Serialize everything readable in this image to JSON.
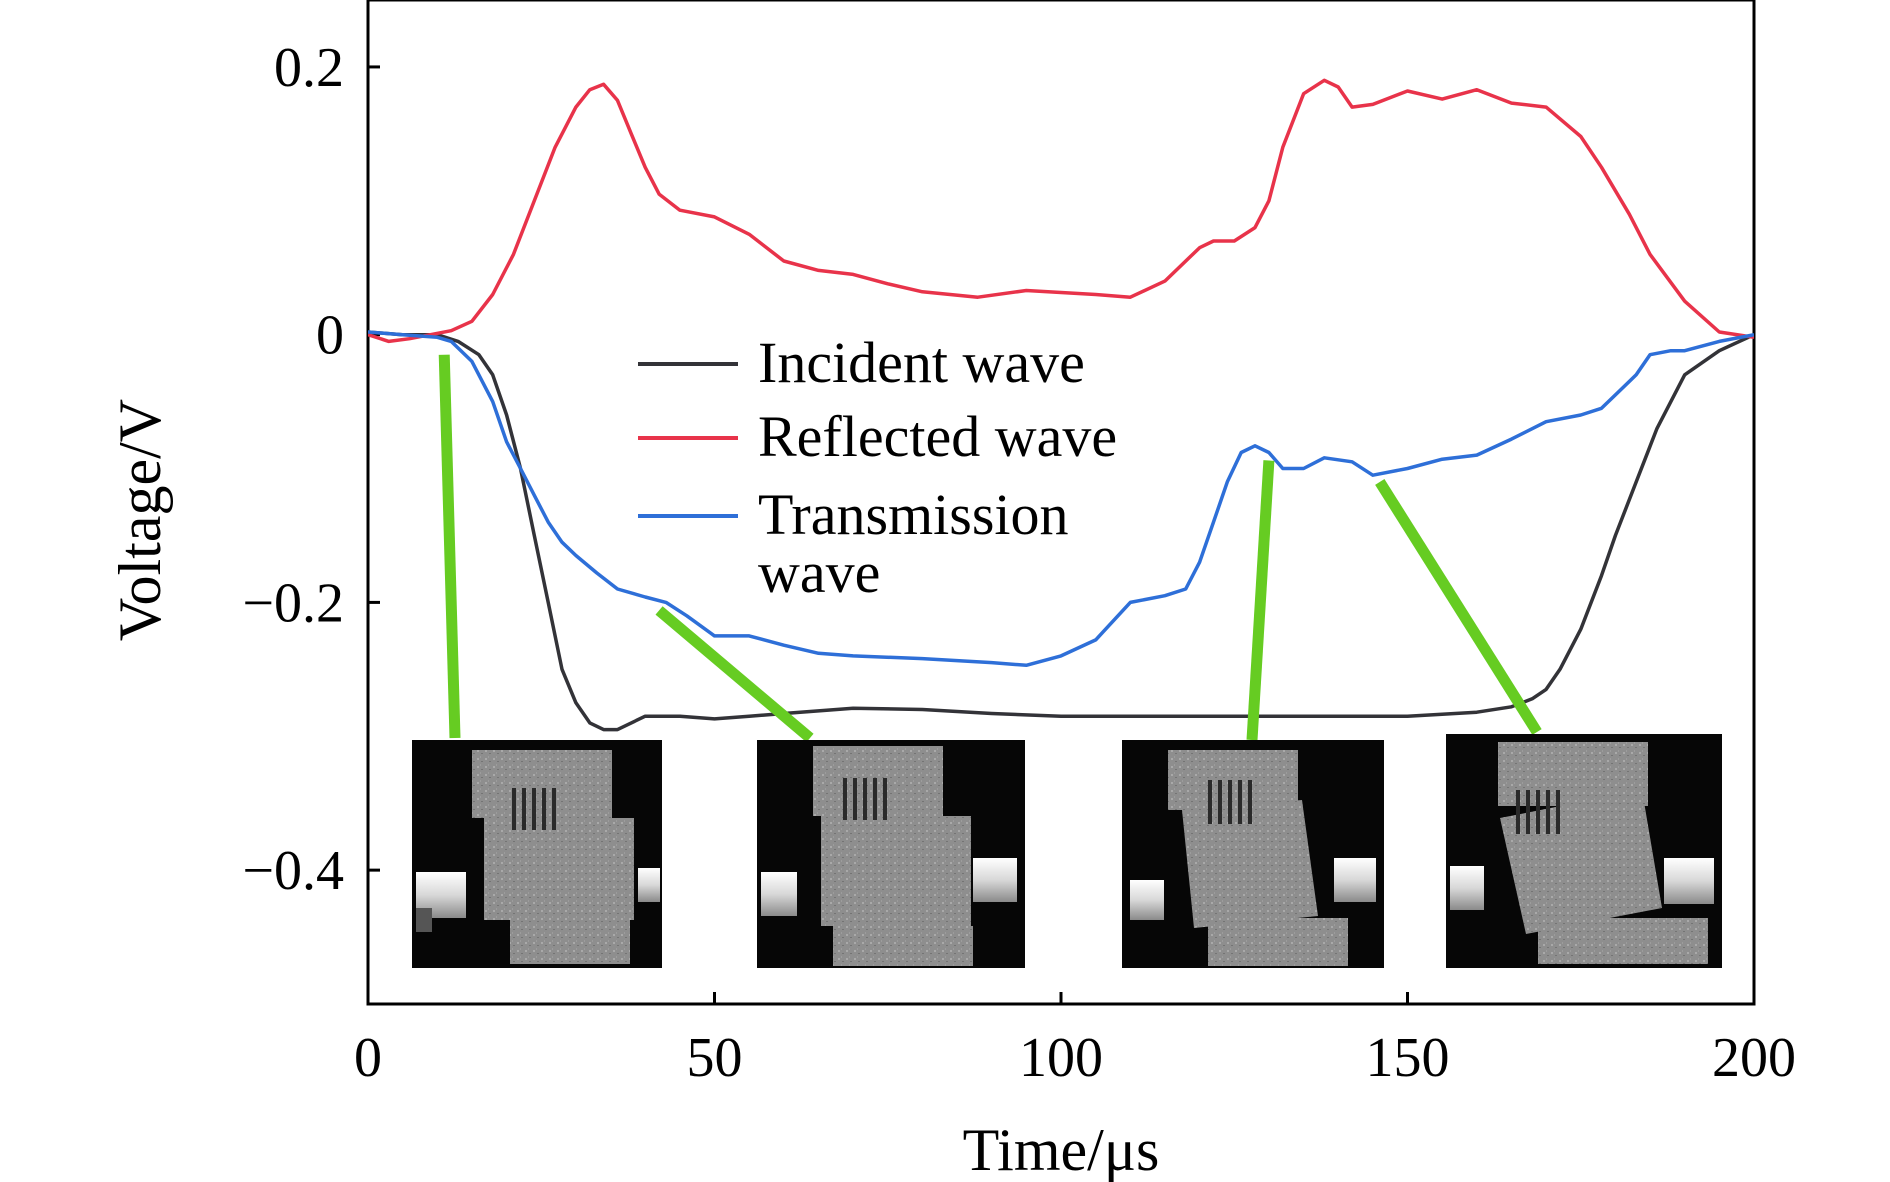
{
  "chart_data": {
    "type": "line",
    "xlabel": "Time/μs",
    "ylabel": "Voltage/V",
    "xlim": [
      0,
      200
    ],
    "ylim": [
      -0.5,
      0.25
    ],
    "xticks": [
      0,
      50,
      100,
      150,
      200
    ],
    "xtick_labels": [
      "0",
      "50",
      "100",
      "150",
      "200"
    ],
    "yticks": [
      0.2,
      0,
      -0.2,
      -0.4
    ],
    "ytick_labels": [
      "0.2",
      "0",
      "−0.2",
      "−0.4"
    ],
    "grid": false,
    "legend_position": "center",
    "series": [
      {
        "name": "Incident wave",
        "color": "#333338",
        "x": [
          0,
          5,
          10,
          13,
          16,
          18,
          20,
          22,
          24,
          26,
          28,
          30,
          32,
          34,
          36,
          38,
          40,
          45,
          50,
          55,
          60,
          70,
          80,
          90,
          100,
          110,
          120,
          130,
          140,
          150,
          160,
          165,
          168,
          170,
          172,
          175,
          178,
          180,
          183,
          186,
          190,
          195,
          200
        ],
        "y": [
          0.002,
          0,
          0,
          -0.005,
          -0.015,
          -0.03,
          -0.06,
          -0.1,
          -0.15,
          -0.2,
          -0.25,
          -0.275,
          -0.29,
          -0.295,
          -0.295,
          -0.29,
          -0.285,
          -0.285,
          -0.287,
          -0.285,
          -0.283,
          -0.279,
          -0.28,
          -0.283,
          -0.285,
          -0.285,
          -0.285,
          -0.285,
          -0.285,
          -0.285,
          -0.282,
          -0.278,
          -0.272,
          -0.265,
          -0.25,
          -0.22,
          -0.18,
          -0.15,
          -0.11,
          -0.07,
          -0.03,
          -0.012,
          0
        ]
      },
      {
        "name": "Reflected wave",
        "color": "#e8334a",
        "x": [
          0,
          3,
          6,
          9,
          12,
          15,
          18,
          21,
          24,
          27,
          30,
          32,
          34,
          36,
          38,
          40,
          42,
          45,
          50,
          55,
          60,
          65,
          70,
          75,
          80,
          88,
          95,
          105,
          110,
          115,
          120,
          122,
          125,
          128,
          130,
          132,
          135,
          138,
          140,
          142,
          145,
          150,
          155,
          160,
          165,
          170,
          175,
          178,
          182,
          185,
          190,
          195,
          200
        ],
        "y": [
          0,
          -0.005,
          -0.003,
          0,
          0.003,
          0.01,
          0.03,
          0.06,
          0.1,
          0.14,
          0.17,
          0.183,
          0.187,
          0.175,
          0.15,
          0.125,
          0.105,
          0.093,
          0.088,
          0.075,
          0.055,
          0.048,
          0.045,
          0.038,
          0.032,
          0.028,
          0.033,
          0.03,
          0.028,
          0.04,
          0.065,
          0.07,
          0.07,
          0.08,
          0.1,
          0.14,
          0.18,
          0.19,
          0.185,
          0.17,
          0.172,
          0.182,
          0.176,
          0.183,
          0.173,
          0.17,
          0.148,
          0.125,
          0.09,
          0.06,
          0.025,
          0.002,
          -0.002
        ]
      },
      {
        "name": "Transmission wave",
        "color": "#2e6fd8",
        "x": [
          0,
          5,
          10,
          12,
          15,
          18,
          20,
          22,
          24,
          26,
          28,
          30,
          33,
          36,
          40,
          43,
          46,
          50,
          55,
          60,
          65,
          70,
          80,
          90,
          95,
          100,
          105,
          110,
          115,
          118,
          120,
          122,
          124,
          126,
          128,
          130,
          132,
          135,
          138,
          142,
          145,
          150,
          155,
          160,
          165,
          170,
          175,
          178,
          180,
          183,
          185,
          188,
          190,
          195,
          200
        ],
        "y": [
          0.002,
          0,
          -0.002,
          -0.005,
          -0.02,
          -0.05,
          -0.08,
          -0.1,
          -0.12,
          -0.14,
          -0.155,
          -0.165,
          -0.178,
          -0.19,
          -0.196,
          -0.2,
          -0.21,
          -0.225,
          -0.225,
          -0.232,
          -0.238,
          -0.24,
          -0.242,
          -0.245,
          -0.247,
          -0.24,
          -0.228,
          -0.2,
          -0.195,
          -0.19,
          -0.17,
          -0.14,
          -0.11,
          -0.088,
          -0.083,
          -0.088,
          -0.1,
          -0.1,
          -0.092,
          -0.095,
          -0.105,
          -0.1,
          -0.093,
          -0.09,
          -0.078,
          -0.065,
          -0.06,
          -0.055,
          -0.045,
          -0.03,
          -0.015,
          -0.012,
          -0.012,
          -0.005,
          0
        ]
      }
    ],
    "legend_entries": [
      "Incident wave",
      "Reflected wave",
      "Transmission wave"
    ],
    "annotation_color": "#66cc22",
    "inset_images": [
      {
        "name": "inset-image-1",
        "x_time": 11,
        "y_voltage": -0.015
      },
      {
        "name": "inset-image-2",
        "x_time": 42,
        "y_voltage": -0.206
      },
      {
        "name": "inset-image-3",
        "x_time": 130,
        "y_voltage": -0.094
      },
      {
        "name": "inset-image-4",
        "x_time": 146,
        "y_voltage": -0.11
      }
    ]
  }
}
